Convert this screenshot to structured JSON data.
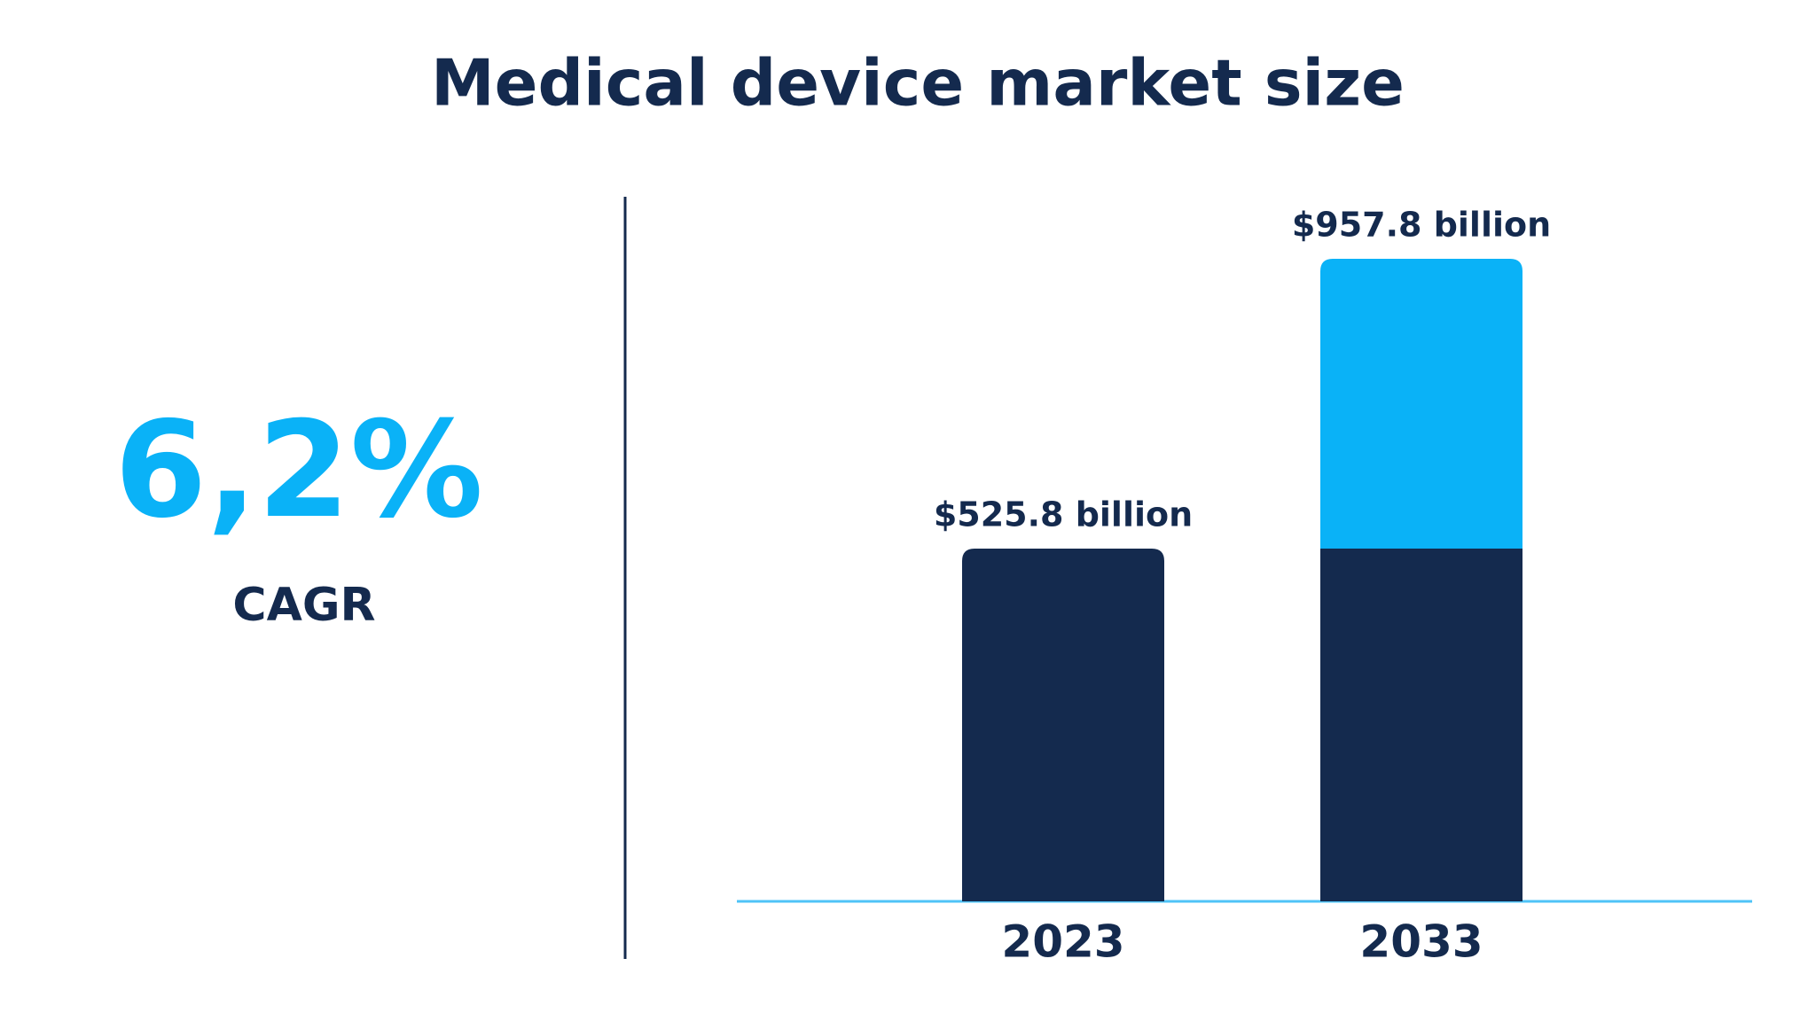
{
  "chart_data": {
    "type": "bar",
    "title": "Medical device market size",
    "categories": [
      "2023",
      "2033"
    ],
    "values": [
      525.8,
      957.8
    ],
    "value_labels": [
      "$525.8 billion",
      "$957.8 billion"
    ],
    "color": "#142a4e",
    "growth_color": "#0ab2f7",
    "highlight_growth": true,
    "ylim": [
      0,
      1000
    ]
  },
  "kpi": {
    "value": "6,2%",
    "label": "CAGR"
  }
}
